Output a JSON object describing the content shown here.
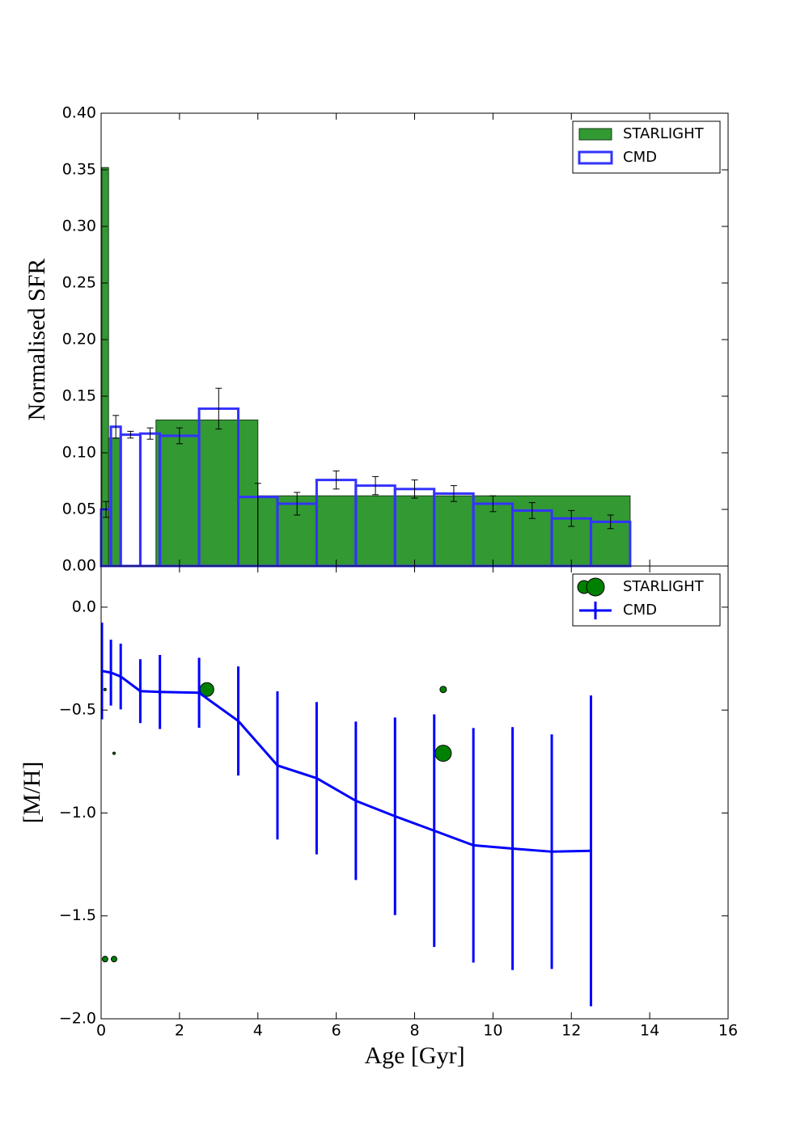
{
  "chart_data": [
    {
      "type": "histogram",
      "ylabel": "Normalised SFR",
      "xlim": [
        0,
        16
      ],
      "xticks": [
        0,
        2,
        4,
        6,
        8,
        10,
        12,
        14,
        16
      ],
      "ylim": [
        0,
        0.4
      ],
      "yticks": [
        {
          "value": 0,
          "label": "0.00"
        },
        {
          "value": 0.05,
          "label": "0.05"
        },
        {
          "value": 0.1,
          "label": "0.10"
        },
        {
          "value": 0.15,
          "label": "0.15"
        },
        {
          "value": 0.2,
          "label": "0.20"
        },
        {
          "value": 0.25,
          "label": "0.25"
        },
        {
          "value": 0.3,
          "label": "0.30"
        },
        {
          "value": 0.35,
          "label": "0.35"
        },
        {
          "value": 0.4,
          "label": "0.40"
        }
      ],
      "legend": "upper right",
      "series": [
        {
          "name": "STARLIGHT",
          "color": "#339933",
          "bins": [
            0.02,
            0.19,
            0.5,
            1.4,
            4.0,
            13.5
          ],
          "values": [
            0.352,
            0.113,
            0,
            0.129,
            0.062
          ]
        },
        {
          "name": "CMD",
          "color": "#3333ff",
          "error_color": "#000000",
          "bins": [
            0,
            0.25,
            0.5,
            1,
            1.5,
            2.5,
            3.5,
            4.5,
            5.5,
            6.5,
            7.5,
            8.5,
            9.5,
            10.5,
            11.5,
            12.5,
            13.5
          ],
          "values": [
            0.05,
            0.123,
            0.116,
            0.117,
            0.115,
            0.139,
            0.061,
            0.055,
            0.076,
            0.071,
            0.068,
            0.064,
            0.055,
            0.049,
            0.042,
            0.039
          ],
          "errors_low": [
            0.007,
            0.01,
            0.003,
            0.005,
            0.007,
            0.018,
            0.061,
            0.01,
            0.008,
            0.008,
            0.008,
            0.007,
            0.007,
            0.007,
            0.007,
            0.006
          ],
          "errors_high": [
            0.007,
            0.01,
            0.003,
            0.005,
            0.007,
            0.018,
            0.012,
            0.01,
            0.008,
            0.008,
            0.008,
            0.007,
            0.007,
            0.007,
            0.007,
            0.006
          ]
        }
      ]
    },
    {
      "type": "line",
      "xlabel": "Age [Gyr]",
      "ylabel": "[M/H]",
      "xlim": [
        0,
        16
      ],
      "xticks": [
        0,
        2,
        4,
        6,
        8,
        10,
        12,
        14,
        16
      ],
      "ylim": [
        -2.0,
        0.2
      ],
      "yticks": [
        {
          "value": -2.0,
          "label": "−2.0"
        },
        {
          "value": -1.5,
          "label": "−1.5"
        },
        {
          "value": -1.0,
          "label": "−1.0"
        },
        {
          "value": -0.5,
          "label": "−0.5"
        },
        {
          "value": 0,
          "label": "0.0"
        }
      ],
      "legend": "upper right",
      "series": [
        {
          "name": "STARLIGHT",
          "type": "scatter",
          "color": "#008000",
          "x": [
            0.1,
            0.33,
            0.1,
            0.33,
            2.7,
            8.73,
            8.73
          ],
          "values": [
            -0.4,
            -0.71,
            -1.71,
            -1.71,
            -0.4,
            -0.4,
            -0.71
          ],
          "sizes": [
            1.5,
            1.5,
            3.5,
            3.5,
            8.5,
            4,
            10
          ]
        },
        {
          "name": "CMD",
          "type": "line",
          "color": "#0000ff",
          "x": [
            0.02,
            0.25,
            0.5,
            1,
            1.5,
            2.5,
            3.5,
            4.5,
            5.5,
            6.5,
            7.5,
            8.5,
            9.5,
            10.5,
            11.5,
            12.5
          ],
          "values": [
            -0.31,
            -0.318,
            -0.337,
            -0.408,
            -0.412,
            -0.416,
            -0.553,
            -0.769,
            -0.831,
            -0.941,
            -1.016,
            -1.086,
            -1.157,
            -1.173,
            -1.188,
            -1.184
          ],
          "errors": [
            0.235,
            0.16,
            0.16,
            0.155,
            0.18,
            0.17,
            0.265,
            0.36,
            0.37,
            0.385,
            0.48,
            0.565,
            0.57,
            0.59,
            0.57,
            0.755
          ]
        }
      ]
    }
  ]
}
